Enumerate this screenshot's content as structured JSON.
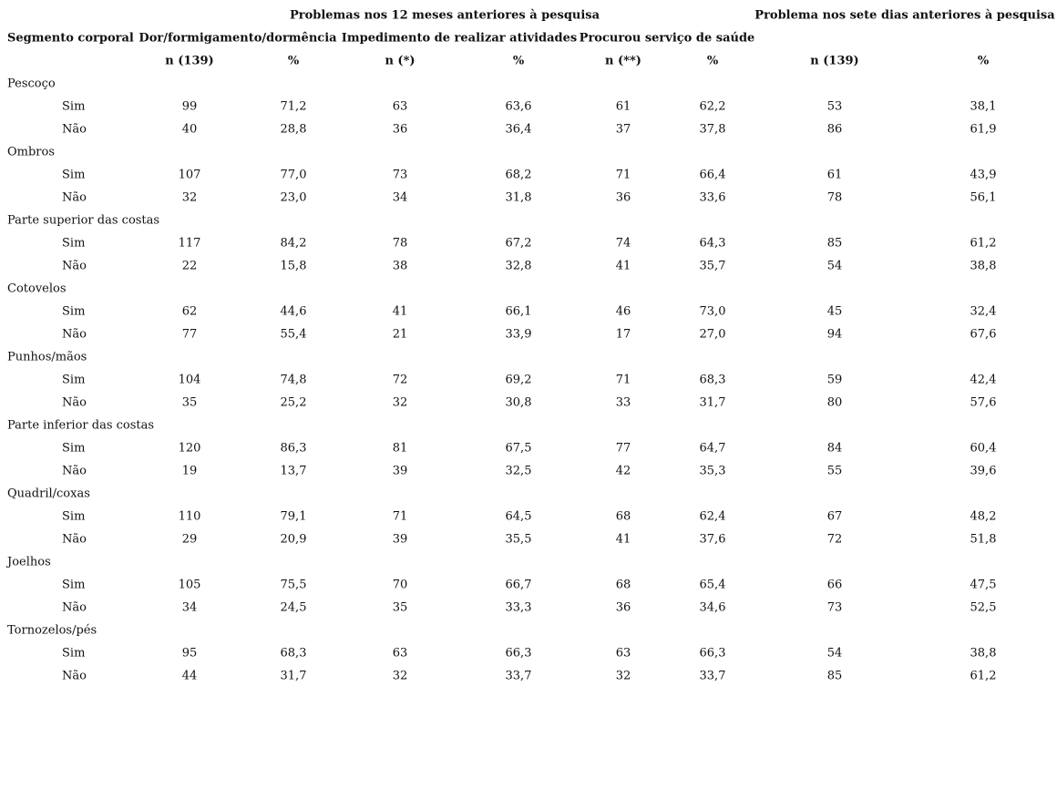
{
  "header": {
    "period_12m": "Problemas nos 12 meses anteriores à pesquisa",
    "period_7d": "Problema nos sete dias anteriores à pesquisa",
    "segment": "Segmento corporal",
    "groups": [
      "Dor/formigamento/dormência",
      "Impedimento de realizar atividades",
      "Procurou serviço de saúde"
    ],
    "subheaders": [
      "n (139)",
      "%",
      "n (*)",
      "%",
      "n (**)",
      "%",
      "n (139)",
      "%"
    ]
  },
  "table": {
    "sections": [
      {
        "label": "Pescoço",
        "rows": [
          {
            "label": "Sim",
            "cells": [
              "99",
              "71,2",
              "63",
              "63,6",
              "61",
              "62,2",
              "53",
              "38,1"
            ]
          },
          {
            "label": "Não",
            "cells": [
              "40",
              "28,8",
              "36",
              "36,4",
              "37",
              "37,8",
              "86",
              "61,9"
            ]
          }
        ]
      },
      {
        "label": "Ombros",
        "rows": [
          {
            "label": "Sim",
            "cells": [
              "107",
              "77,0",
              "73",
              "68,2",
              "71",
              "66,4",
              "61",
              "43,9"
            ]
          },
          {
            "label": "Não",
            "cells": [
              "32",
              "23,0",
              "34",
              "31,8",
              "36",
              "33,6",
              "78",
              "56,1"
            ]
          }
        ]
      },
      {
        "label": "Parte superior das costas",
        "rows": [
          {
            "label": "Sim",
            "cells": [
              "117",
              "84,2",
              "78",
              "67,2",
              "74",
              "64,3",
              "85",
              "61,2"
            ]
          },
          {
            "label": "Não",
            "cells": [
              "22",
              "15,8",
              "38",
              "32,8",
              "41",
              "35,7",
              "54",
              "38,8"
            ]
          }
        ]
      },
      {
        "label": "Cotovelos",
        "rows": [
          {
            "label": "Sim",
            "cells": [
              "62",
              "44,6",
              "41",
              "66,1",
              "46",
              "73,0",
              "45",
              "32,4"
            ]
          },
          {
            "label": "Não",
            "cells": [
              "77",
              "55,4",
              "21",
              "33,9",
              "17",
              "27,0",
              "94",
              "67,6"
            ]
          }
        ]
      },
      {
        "label": "Punhos/mãos",
        "rows": [
          {
            "label": "Sim",
            "cells": [
              "104",
              "74,8",
              "72",
              "69,2",
              "71",
              "68,3",
              "59",
              "42,4"
            ]
          },
          {
            "label": "Não",
            "cells": [
              "35",
              "25,2",
              "32",
              "30,8",
              "33",
              "31,7",
              "80",
              "57,6"
            ]
          }
        ]
      },
      {
        "label": "Parte inferior das costas",
        "rows": [
          {
            "label": "Sim",
            "cells": [
              "120",
              "86,3",
              "81",
              "67,5",
              "77",
              "64,7",
              "84",
              "60,4"
            ]
          },
          {
            "label": "Não",
            "cells": [
              "19",
              "13,7",
              "39",
              "32,5",
              "42",
              "35,3",
              "55",
              "39,6"
            ]
          }
        ]
      },
      {
        "label": "Quadril/coxas",
        "rows": [
          {
            "label": "Sim",
            "cells": [
              "110",
              "79,1",
              "71",
              "64,5",
              "68",
              "62,4",
              "67",
              "48,2"
            ]
          },
          {
            "label": "Não",
            "cells": [
              "29",
              "20,9",
              "39",
              "35,5",
              "41",
              "37,6",
              "72",
              "51,8"
            ]
          }
        ]
      },
      {
        "label": "Joelhos",
        "rows": [
          {
            "label": "Sim",
            "cells": [
              "105",
              "75,5",
              "70",
              "66,7",
              "68",
              "65,4",
              "66",
              "47,5"
            ]
          },
          {
            "label": "Não",
            "cells": [
              "34",
              "24,5",
              "35",
              "33,3",
              "36",
              "34,6",
              "73",
              "52,5"
            ]
          }
        ]
      },
      {
        "label": "Tornozelos/pés",
        "rows": [
          {
            "label": "Sim",
            "cells": [
              "95",
              "68,3",
              "63",
              "66,3",
              "63",
              "66,3",
              "54",
              "38,8"
            ]
          },
          {
            "label": "Não",
            "cells": [
              "44",
              "31,7",
              "32",
              "33,7",
              "32",
              "33,7",
              "85",
              "61,2"
            ]
          }
        ]
      }
    ]
  }
}
